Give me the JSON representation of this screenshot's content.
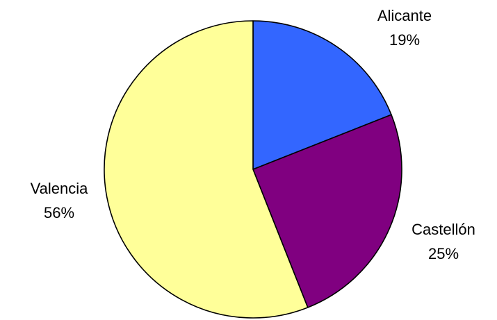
{
  "chart_data": {
    "type": "pie",
    "slices": [
      {
        "label": "Alicante",
        "value": 19,
        "value_label": "19%",
        "color": "#3366ff"
      },
      {
        "label": "Castellón",
        "value": 25,
        "value_label": "25%",
        "color": "#800080"
      },
      {
        "label": "Valencia",
        "value": 56,
        "value_label": "56%",
        "color": "#ffff99"
      }
    ],
    "legend": "none",
    "start_angle": "12 o'clock",
    "direction": "clockwise"
  }
}
